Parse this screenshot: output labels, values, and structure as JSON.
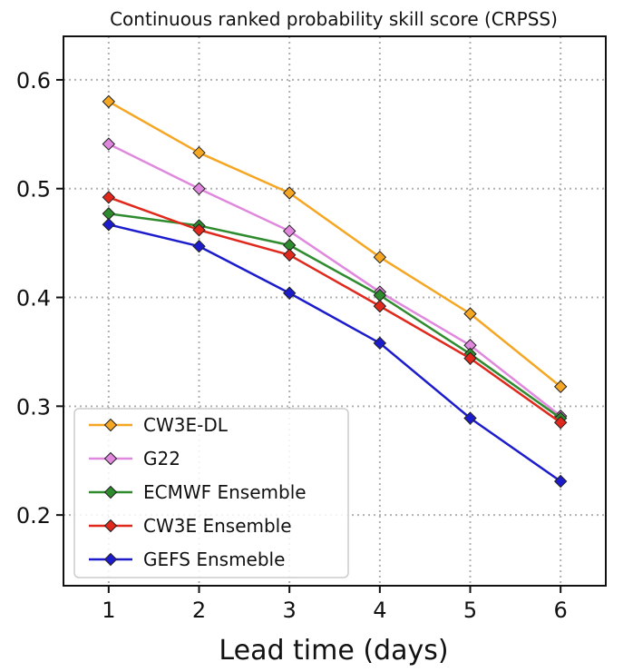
{
  "chart_data": {
    "type": "line",
    "title": "Continuous ranked probability skill score (CRPSS)",
    "xlabel": "Lead time (days)",
    "ylabel": "",
    "x": [
      1,
      2,
      3,
      4,
      5,
      6
    ],
    "xticks": [
      "1",
      "2",
      "3",
      "4",
      "5",
      "6"
    ],
    "yticks": [
      "0.2",
      "0.3",
      "0.4",
      "0.5",
      "0.6"
    ],
    "xlim": [
      0.5,
      6.5
    ],
    "ylim": [
      0.135,
      0.64
    ],
    "grid": true,
    "legend_position": "bottom-left",
    "series": [
      {
        "name": "CW3E-DL",
        "color": "#f5a623",
        "marker": "diamond",
        "values": [
          0.58,
          0.533,
          0.496,
          0.437,
          0.385,
          0.318
        ]
      },
      {
        "name": "G22",
        "color": "#e088dd",
        "marker": "diamond",
        "values": [
          0.541,
          0.5,
          0.461,
          0.405,
          0.356,
          0.291
        ]
      },
      {
        "name": "ECMWF Ensemble",
        "color": "#2e8b2e",
        "marker": "diamond",
        "values": [
          0.477,
          0.466,
          0.448,
          0.402,
          0.348,
          0.289
        ]
      },
      {
        "name": "CW3E Ensemble",
        "color": "#e0281c",
        "marker": "diamond",
        "values": [
          0.492,
          0.462,
          0.439,
          0.392,
          0.344,
          0.285
        ]
      },
      {
        "name": "GEFS Ensmeble",
        "color": "#1c1ccc",
        "marker": "diamond",
        "values": [
          0.467,
          0.447,
          0.404,
          0.358,
          0.289,
          0.231
        ]
      }
    ]
  }
}
